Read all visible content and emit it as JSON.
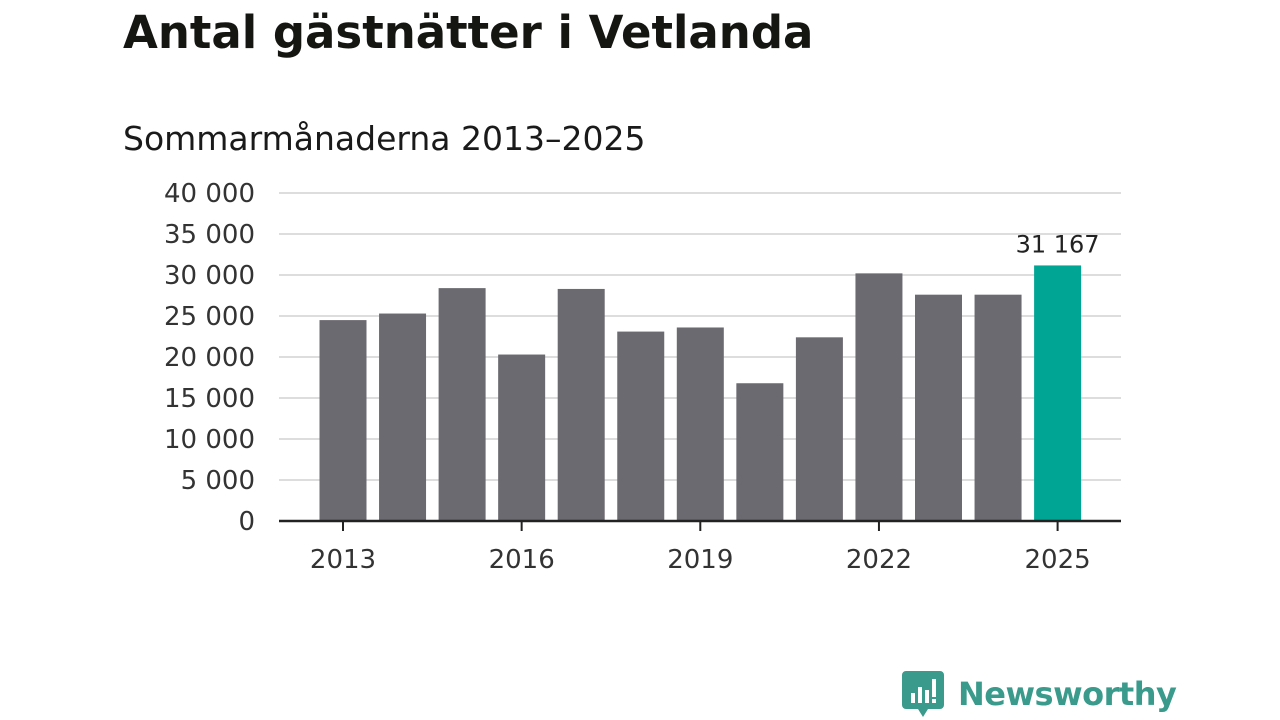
{
  "title": "Antal gästnätter i Vetlanda",
  "subtitle": "Sommarmånaderna 2013–2025",
  "brand": {
    "name": "Newsworthy",
    "color": "#3a9a8c",
    "icon": "newsworthy-chart-bubble-icon"
  },
  "colors": {
    "bar": "#6b6a70",
    "highlight": "#00a593",
    "grid": "#dddddd",
    "axis": "#222222"
  },
  "chart_data": {
    "type": "bar",
    "title": "Antal gästnätter i Vetlanda",
    "subtitle": "Sommarmånaderna 2013–2025",
    "xlabel": "",
    "ylabel": "",
    "categories": [
      "2013",
      "2014",
      "2015",
      "2016",
      "2017",
      "2018",
      "2019",
      "2020",
      "2021",
      "2022",
      "2023",
      "2024",
      "2025"
    ],
    "values": [
      24500,
      25300,
      28400,
      20300,
      28300,
      23100,
      23600,
      16800,
      22400,
      30200,
      27600,
      27600,
      31167
    ],
    "highlight_index": 12,
    "x_tick_labels": [
      "2013",
      "2016",
      "2019",
      "2022",
      "2025"
    ],
    "y_tick_values": [
      0,
      5000,
      10000,
      15000,
      20000,
      25000,
      30000,
      35000,
      40000
    ],
    "y_tick_labels": [
      "0",
      "5 000",
      "10 000",
      "15 000",
      "20 000",
      "25 000",
      "30 000",
      "35 000",
      "40 000"
    ],
    "annotations": [
      {
        "category": "2025",
        "text": "31 167"
      }
    ],
    "ylim": [
      0,
      40000
    ],
    "grid": true,
    "legend": "none"
  }
}
